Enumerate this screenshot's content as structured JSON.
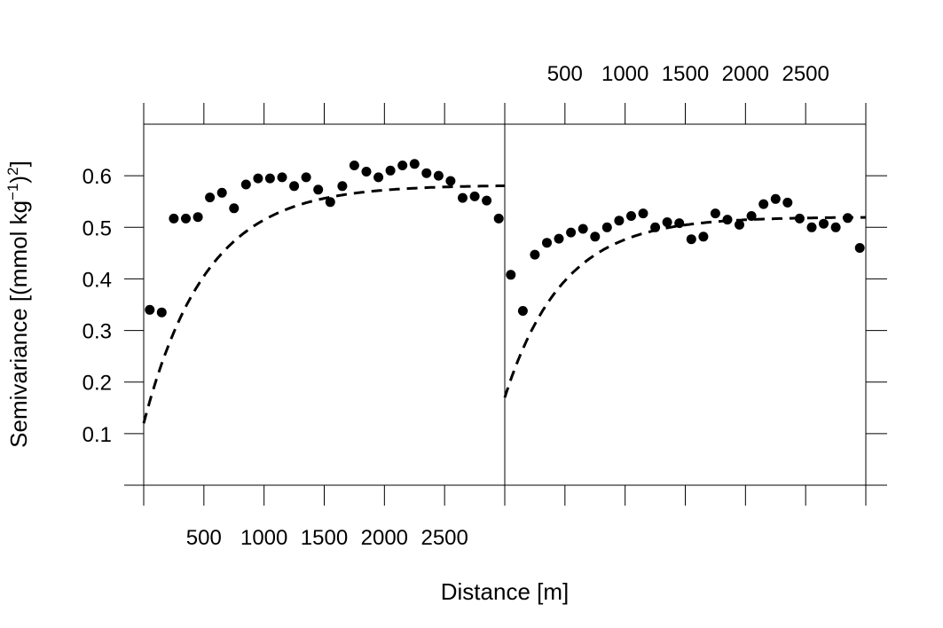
{
  "chart_data": {
    "type": "scatter",
    "xlabel": "Distance [m]",
    "ylabel_main": "Semivariance [(mmol kg",
    "ylabel_sup1": "−1",
    "ylabel_mid": ")",
    "ylabel_sup2": "2",
    "ylabel_end": "]",
    "xlim": [
      0,
      3000
    ],
    "ylim": [
      0,
      0.7
    ],
    "x_ticks": [
      500,
      1000,
      1500,
      2000,
      2500
    ],
    "y_ticks": [
      0.1,
      0.2,
      0.3,
      0.4,
      0.5,
      0.6
    ],
    "x_tick_labels": [
      "500",
      "1000",
      "1500",
      "2000",
      "2500"
    ],
    "y_tick_labels": [
      "0.1",
      "0.2",
      "0.3",
      "0.4",
      "0.5",
      "0.6"
    ],
    "grid": false,
    "panels": [
      {
        "x_labels_position": "bottom",
        "points": [
          [
            50,
            0.34
          ],
          [
            150,
            0.335
          ],
          [
            250,
            0.517
          ],
          [
            350,
            0.517
          ],
          [
            450,
            0.52
          ],
          [
            550,
            0.558
          ],
          [
            650,
            0.567
          ],
          [
            750,
            0.537
          ],
          [
            850,
            0.583
          ],
          [
            950,
            0.595
          ],
          [
            1050,
            0.595
          ],
          [
            1150,
            0.597
          ],
          [
            1250,
            0.58
          ],
          [
            1350,
            0.597
          ],
          [
            1450,
            0.573
          ],
          [
            1550,
            0.549
          ],
          [
            1650,
            0.58
          ],
          [
            1750,
            0.62
          ],
          [
            1850,
            0.608
          ],
          [
            1950,
            0.597
          ],
          [
            2050,
            0.61
          ],
          [
            2150,
            0.62
          ],
          [
            2250,
            0.623
          ],
          [
            2350,
            0.605
          ],
          [
            2450,
            0.6
          ],
          [
            2550,
            0.59
          ],
          [
            2650,
            0.557
          ],
          [
            2750,
            0.56
          ],
          [
            2850,
            0.552
          ],
          [
            2950,
            0.517
          ]
        ],
        "fit": {
          "model": "exponential",
          "nugget": 0.12,
          "sill": 0.582,
          "range": 520
        }
      },
      {
        "x_labels_position": "top",
        "points": [
          [
            50,
            0.408
          ],
          [
            150,
            0.338
          ],
          [
            250,
            0.447
          ],
          [
            350,
            0.47
          ],
          [
            450,
            0.478
          ],
          [
            550,
            0.49
          ],
          [
            650,
            0.497
          ],
          [
            750,
            0.482
          ],
          [
            850,
            0.5
          ],
          [
            950,
            0.513
          ],
          [
            1050,
            0.522
          ],
          [
            1150,
            0.527
          ],
          [
            1250,
            0.5
          ],
          [
            1350,
            0.51
          ],
          [
            1450,
            0.508
          ],
          [
            1550,
            0.477
          ],
          [
            1650,
            0.482
          ],
          [
            1750,
            0.527
          ],
          [
            1850,
            0.515
          ],
          [
            1950,
            0.505
          ],
          [
            2050,
            0.522
          ],
          [
            2150,
            0.545
          ],
          [
            2250,
            0.555
          ],
          [
            2350,
            0.548
          ],
          [
            2450,
            0.517
          ],
          [
            2550,
            0.5
          ],
          [
            2650,
            0.507
          ],
          [
            2750,
            0.5
          ],
          [
            2850,
            0.518
          ],
          [
            2950,
            0.46
          ]
        ],
        "fit": {
          "model": "exponential",
          "nugget": 0.17,
          "sill": 0.52,
          "range": 480
        }
      }
    ]
  }
}
